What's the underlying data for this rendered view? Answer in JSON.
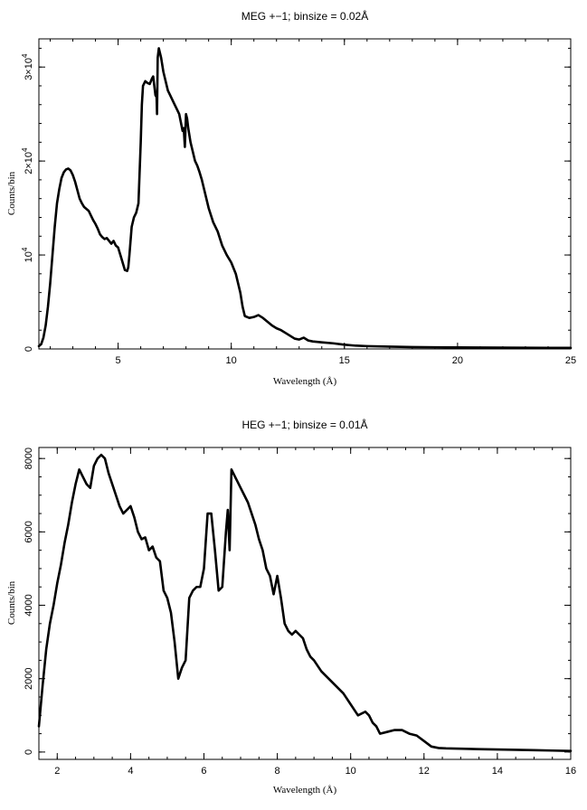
{
  "chart_data": [
    {
      "type": "line",
      "title": "MEG +−1; binsize = 0.02Å",
      "xlabel": "Wavelength (Å)",
      "ylabel": "Counts/bin",
      "xlim": [
        1.5,
        25
      ],
      "ylim": [
        0,
        33000
      ],
      "x_ticks": [
        {
          "value": 5,
          "label": "5"
        },
        {
          "value": 10,
          "label": "10"
        },
        {
          "value": 15,
          "label": "15"
        },
        {
          "value": 20,
          "label": "20"
        },
        {
          "value": 25,
          "label": "25"
        }
      ],
      "y_ticks": [
        {
          "value": 0,
          "mant": "0",
          "exp": ""
        },
        {
          "value": 10000,
          "mant": "10",
          "exp": "4"
        },
        {
          "value": 20000,
          "mant": "2×10",
          "exp": "4"
        },
        {
          "value": 30000,
          "mant": "3×10",
          "exp": "4"
        }
      ],
      "x_minor_step": 1,
      "y_minor_step": 2000,
      "series": [
        {
          "color": "#000000",
          "x": [
            1.5,
            1.6,
            1.7,
            1.8,
            1.9,
            2.0,
            2.1,
            2.2,
            2.3,
            2.4,
            2.5,
            2.6,
            2.7,
            2.8,
            2.9,
            3.0,
            3.1,
            3.2,
            3.3,
            3.4,
            3.5,
            3.6,
            3.7,
            3.8,
            3.9,
            4.0,
            4.1,
            4.2,
            4.3,
            4.4,
            4.5,
            4.6,
            4.7,
            4.8,
            4.9,
            5.0,
            5.1,
            5.2,
            5.3,
            5.4,
            5.45,
            5.5,
            5.6,
            5.7,
            5.8,
            5.9,
            6.0,
            6.05,
            6.1,
            6.2,
            6.3,
            6.4,
            6.5,
            6.55,
            6.6,
            6.65,
            6.7,
            6.72,
            6.75,
            6.8,
            6.9,
            7.0,
            7.1,
            7.2,
            7.3,
            7.4,
            7.5,
            7.6,
            7.7,
            7.8,
            7.85,
            7.9,
            7.95,
            8.0,
            8.05,
            8.1,
            8.2,
            8.3,
            8.4,
            8.5,
            8.6,
            8.7,
            8.8,
            8.9,
            9.0,
            9.2,
            9.4,
            9.6,
            9.8,
            10.0,
            10.2,
            10.4,
            10.5,
            10.6,
            10.8,
            11.0,
            11.2,
            11.4,
            11.6,
            11.8,
            12.0,
            12.2,
            12.4,
            12.6,
            12.8,
            13.0,
            13.2,
            13.4,
            13.6,
            14.0,
            14.5,
            15.0,
            15.5,
            16.0,
            17.0,
            18.0,
            19.0,
            20.0,
            21.0,
            22.0,
            23.0,
            24.0,
            25.0
          ],
          "y": [
            300,
            500,
            1200,
            2500,
            4500,
            7000,
            10000,
            13000,
            15500,
            17000,
            18200,
            18800,
            19100,
            19200,
            19000,
            18500,
            17800,
            16900,
            16000,
            15500,
            15100,
            14900,
            14700,
            14200,
            13700,
            13300,
            12800,
            12200,
            11900,
            11700,
            11800,
            11500,
            11200,
            11500,
            11000,
            10800,
            10000,
            9200,
            8400,
            8300,
            8700,
            10000,
            13000,
            14000,
            14500,
            15500,
            22000,
            26000,
            28000,
            28500,
            28300,
            28200,
            28800,
            29000,
            28000,
            27000,
            26800,
            25000,
            31000,
            32000,
            31000,
            29500,
            28500,
            27500,
            27000,
            26500,
            26000,
            25500,
            25000,
            23800,
            23200,
            23500,
            21500,
            25000,
            24500,
            23500,
            22000,
            21000,
            20000,
            19500,
            18800,
            18000,
            17000,
            16000,
            15000,
            13500,
            12500,
            11000,
            10000,
            9200,
            8000,
            6000,
            4500,
            3500,
            3300,
            3400,
            3600,
            3300,
            2900,
            2500,
            2200,
            2000,
            1700,
            1400,
            1100,
            1000,
            1200,
            900,
            800,
            700,
            600,
            450,
            350,
            300,
            250,
            200,
            180,
            160,
            150,
            140,
            130,
            120,
            110
          ]
        }
      ]
    },
    {
      "type": "line",
      "title": "HEG +−1; binsize = 0.01Å",
      "xlabel": "Wavelength (Å)",
      "ylabel": "Counts/bin",
      "xlim": [
        1.5,
        16
      ],
      "ylim": [
        -200,
        8300
      ],
      "x_ticks": [
        {
          "value": 2,
          "label": "2"
        },
        {
          "value": 4,
          "label": "4"
        },
        {
          "value": 6,
          "label": "6"
        },
        {
          "value": 8,
          "label": "8"
        },
        {
          "value": 10,
          "label": "10"
        },
        {
          "value": 12,
          "label": "12"
        },
        {
          "value": 14,
          "label": "14"
        },
        {
          "value": 16,
          "label": "16"
        }
      ],
      "y_ticks": [
        {
          "value": 0,
          "mant": "0",
          "exp": ""
        },
        {
          "value": 2000,
          "mant": "2000",
          "exp": ""
        },
        {
          "value": 4000,
          "mant": "4000",
          "exp": ""
        },
        {
          "value": 6000,
          "mant": "6000",
          "exp": ""
        },
        {
          "value": 8000,
          "mant": "8000",
          "exp": ""
        }
      ],
      "x_minor_step": 0.5,
      "y_minor_step": 500,
      "series": [
        {
          "color": "#000000",
          "x": [
            1.5,
            1.6,
            1.7,
            1.8,
            1.9,
            2.0,
            2.1,
            2.2,
            2.3,
            2.4,
            2.5,
            2.6,
            2.7,
            2.8,
            2.9,
            3.0,
            3.1,
            3.2,
            3.3,
            3.4,
            3.5,
            3.6,
            3.7,
            3.8,
            3.9,
            4.0,
            4.1,
            4.2,
            4.3,
            4.4,
            4.5,
            4.6,
            4.7,
            4.8,
            4.9,
            5.0,
            5.1,
            5.2,
            5.3,
            5.4,
            5.5,
            5.6,
            5.7,
            5.8,
            5.9,
            6.0,
            6.1,
            6.2,
            6.3,
            6.4,
            6.5,
            6.6,
            6.65,
            6.7,
            6.75,
            6.8,
            6.9,
            7.0,
            7.1,
            7.2,
            7.3,
            7.4,
            7.5,
            7.6,
            7.7,
            7.8,
            7.9,
            8.0,
            8.1,
            8.2,
            8.3,
            8.4,
            8.5,
            8.6,
            8.7,
            8.8,
            8.9,
            9.0,
            9.2,
            9.4,
            9.6,
            9.8,
            10.0,
            10.2,
            10.4,
            10.5,
            10.6,
            10.7,
            10.8,
            11.0,
            11.2,
            11.4,
            11.6,
            11.8,
            12.0,
            12.2,
            12.4,
            12.6,
            13.0,
            13.5,
            14.0,
            14.5,
            15.0,
            15.5,
            16.0
          ],
          "y": [
            700,
            1800,
            2800,
            3500,
            4000,
            4600,
            5100,
            5700,
            6200,
            6800,
            7300,
            7700,
            7500,
            7300,
            7200,
            7800,
            8000,
            8100,
            8000,
            7600,
            7300,
            7000,
            6700,
            6500,
            6600,
            6700,
            6400,
            6000,
            5800,
            5850,
            5500,
            5600,
            5300,
            5200,
            4400,
            4200,
            3800,
            3000,
            2000,
            2300,
            2500,
            4200,
            4400,
            4500,
            4500,
            5000,
            6500,
            6500,
            5500,
            4400,
            4500,
            6000,
            6600,
            5500,
            7700,
            7600,
            7400,
            7200,
            7000,
            6800,
            6500,
            6200,
            5800,
            5500,
            5000,
            4800,
            4300,
            4800,
            4200,
            3500,
            3300,
            3200,
            3300,
            3200,
            3100,
            2800,
            2600,
            2500,
            2200,
            2000,
            1800,
            1600,
            1300,
            1000,
            1100,
            1000,
            800,
            700,
            500,
            550,
            600,
            600,
            500,
            450,
            300,
            150,
            110,
            100,
            90,
            80,
            70,
            60,
            50,
            40,
            30
          ]
        }
      ]
    }
  ]
}
